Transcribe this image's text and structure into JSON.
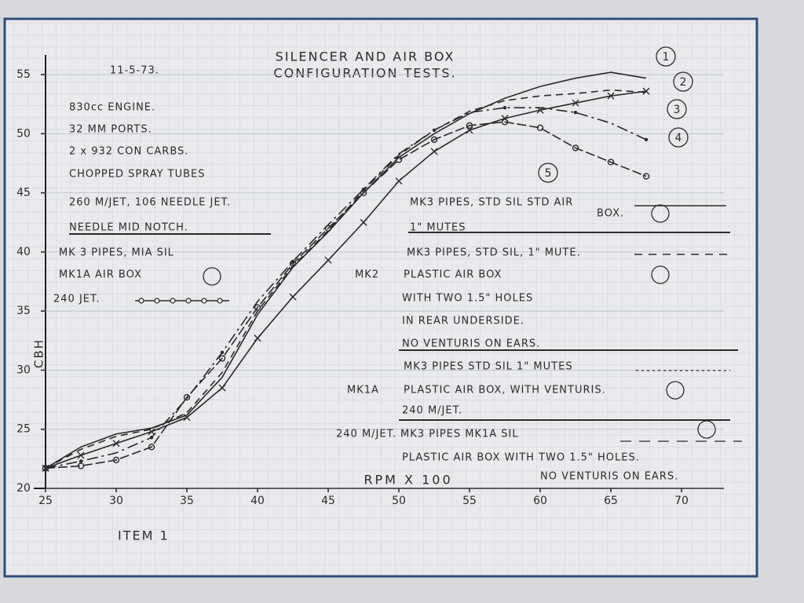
{
  "chart_data": {
    "type": "line",
    "title": "SILENCER AND AIR BOX",
    "subtitle": "CONFIGURATION TESTS.",
    "date": "11-5-73.",
    "x_label": "RPM X 100",
    "y_label": "CBH",
    "footer": "ITEM 1",
    "x": [
      25,
      27.5,
      30,
      32.5,
      35,
      37.5,
      40,
      42.5,
      45,
      47.5,
      50,
      52.5,
      55,
      57.5,
      60,
      62.5,
      65,
      67.5
    ],
    "series": [
      {
        "name": "1",
        "color": "#2a2a2a",
        "style": "solid",
        "values": [
          21.7,
          23.5,
          24.6,
          25.1,
          26.2,
          29.4,
          34.7,
          38.7,
          41.7,
          45,
          48,
          50,
          51.7,
          53,
          54,
          54.7,
          55.2,
          54.7
        ]
      },
      {
        "name": "2",
        "color": "#2a2a2a",
        "style": "dashed",
        "values": [
          21.7,
          23.3,
          24.4,
          25,
          26.4,
          29.8,
          35,
          38.8,
          41.8,
          45.2,
          48.2,
          50.3,
          51.9,
          52.8,
          53.2,
          53.4,
          53.7,
          53.5
        ]
      },
      {
        "name": "3",
        "color": "#2a2a2a",
        "style": "crosses",
        "values": [
          21.7,
          22.8,
          23.8,
          24.8,
          26,
          28.5,
          32.7,
          36.2,
          39.3,
          42.5,
          46,
          48.5,
          50.3,
          51.3,
          52,
          52.6,
          53.2,
          53.6
        ]
      },
      {
        "name": "4",
        "color": "#2a2a2a",
        "style": "dash-dot",
        "values": [
          21.7,
          22.3,
          23,
          24.3,
          27.6,
          31.5,
          35.8,
          39.2,
          42.3,
          45.3,
          48.3,
          50.3,
          51.8,
          52.2,
          52.2,
          51.8,
          50.9,
          49.5
        ]
      },
      {
        "name": "5",
        "color": "#2a2a2a",
        "style": "circles",
        "values": [
          21.7,
          21.9,
          22.4,
          23.5,
          27.7,
          31,
          35.3,
          39,
          42,
          45,
          47.8,
          49.5,
          50.7,
          51,
          50.5,
          48.8,
          47.6,
          46.4
        ]
      }
    ],
    "xlim": [
      25,
      73
    ],
    "xticks": [
      25,
      30,
      35,
      40,
      45,
      50,
      55,
      60,
      65,
      70
    ],
    "ylim": [
      20,
      56
    ],
    "yticks": [
      20,
      25,
      30,
      35,
      40,
      45,
      50,
      55
    ],
    "grid": true,
    "notes": [
      "830cc ENGINE.",
      "32 MM PORTS.",
      "2 x 932 CON CARBS.",
      "CHOPPED SPRAY TUBES",
      "260 M/JET, 106 NEEDLE JET.",
      "NEEDLE MID NOTCH.",
      "MK 3 PIPES, MIA SIL",
      "MK1A AIR BOX",
      "240 JET.",
      "MK3 PIPES, STD SIL STD AIR",
      "BOX.",
      "1\" MUTES",
      "MK3 PIPES, STD SIL, 1\" MUTE.",
      "MK2",
      "PLASTIC AIR BOX",
      "WITH TWO 1.5\" HOLES",
      "IN REAR UNDERSIDE.",
      "NO VENTURIS ON EARS.",
      "MK3 PIPES STD SIL 1\" MUTES",
      "MK1A",
      "PLASTIC AIR BOX, WITH VENTURIS.",
      "240 M/JET.",
      "240 M/JET.",
      "MK3 PIPES MK1A SIL",
      "PLASTIC AIR BOX WITH TWO 1.5\" HOLES.",
      "NO VENTURIS ON EARS."
    ]
  }
}
